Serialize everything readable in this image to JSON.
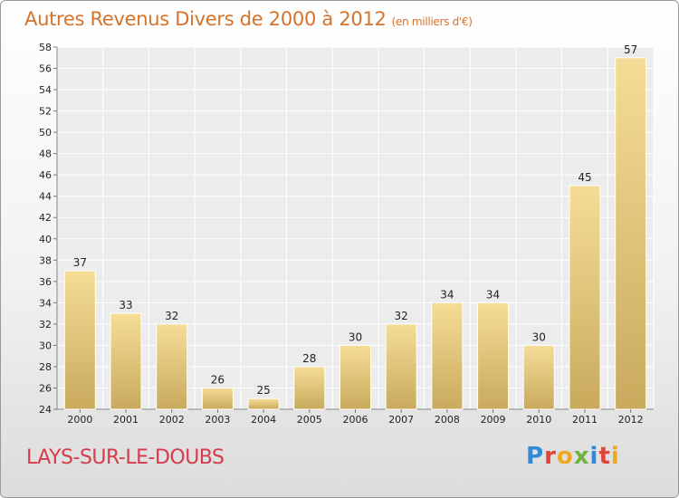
{
  "header": {
    "title": "Autres Revenus Divers de 2000 à 2012",
    "subtitle": "(en milliers d'€)"
  },
  "footer": {
    "location": "LAYS-SUR-LE-DOUBS",
    "logo_letters": [
      "P",
      "r",
      "o",
      "x",
      "i",
      "t",
      "i"
    ]
  },
  "colors": {
    "title": "#d6732a",
    "location": "#d53b4a",
    "bar_light": "#f5dd97",
    "bar_dark": "#c9aa5d"
  },
  "chart_data": {
    "type": "bar",
    "title": "Autres Revenus Divers de 2000 à 2012",
    "subtitle": "(en milliers d'€)",
    "categories": [
      "2000",
      "2001",
      "2002",
      "2003",
      "2004",
      "2005",
      "2006",
      "2007",
      "2008",
      "2009",
      "2010",
      "2011",
      "2012"
    ],
    "values": [
      37,
      33,
      32,
      26,
      25,
      28,
      30,
      32,
      34,
      34,
      30,
      45,
      57
    ],
    "ylim": [
      24,
      58
    ],
    "yticks": [
      24,
      26,
      28,
      30,
      32,
      34,
      36,
      38,
      40,
      42,
      44,
      46,
      48,
      50,
      52,
      54,
      56,
      58
    ],
    "grid": true,
    "legend": "none"
  }
}
